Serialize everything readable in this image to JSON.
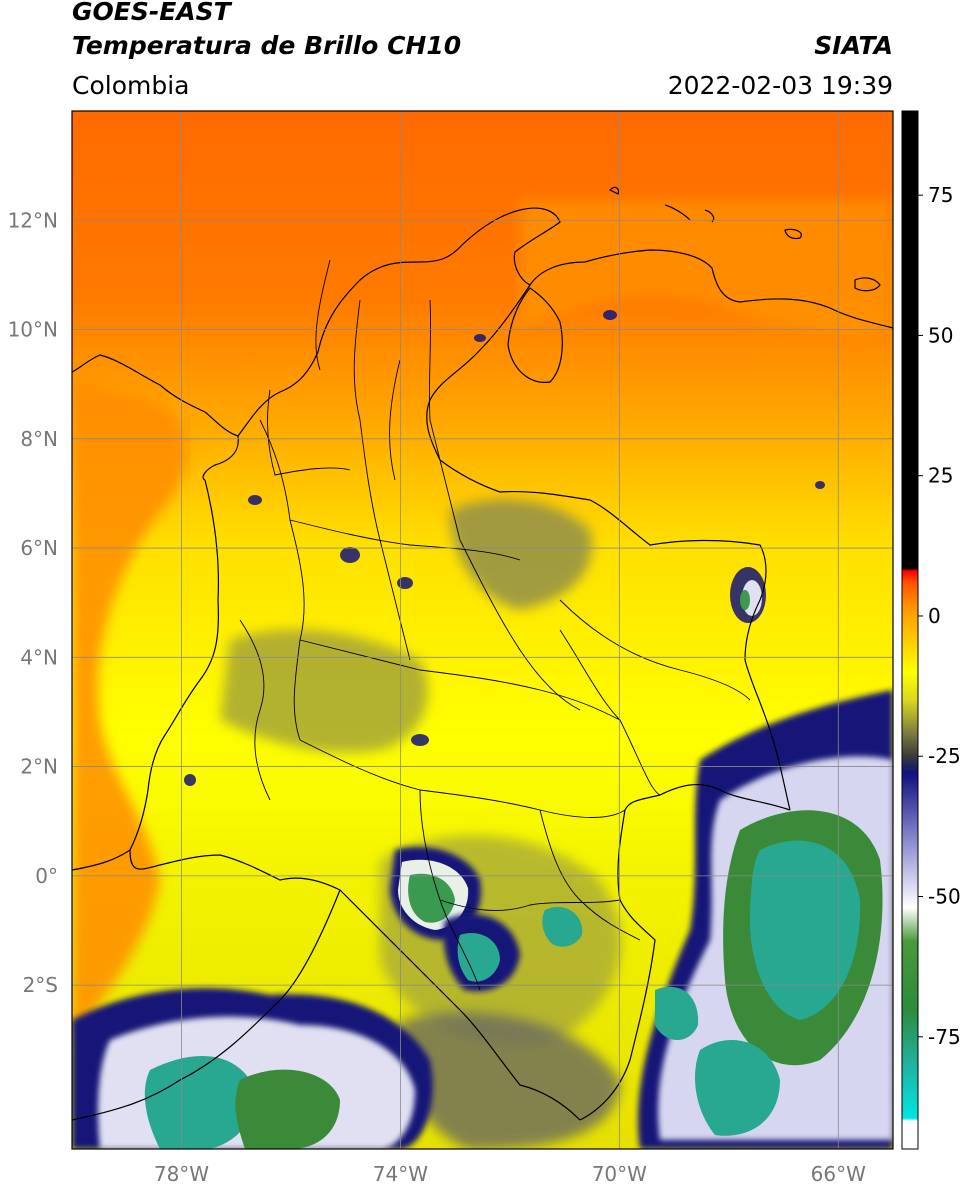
{
  "header": {
    "satellite": "GOES-EAST",
    "product": "Temperatura de Brillo CH10",
    "region": "Colombia",
    "agency": "SIATA",
    "datetime": "2022-02-03 19:39"
  },
  "map": {
    "lon_range": [
      -80,
      -65
    ],
    "lat_range": [
      -5,
      14
    ],
    "lat_ticks": [
      {
        "value": 12,
        "label": "12°N"
      },
      {
        "value": 10,
        "label": "10°N"
      },
      {
        "value": 8,
        "label": "8°N"
      },
      {
        "value": 6,
        "label": "6°N"
      },
      {
        "value": 4,
        "label": "4°N"
      },
      {
        "value": 2,
        "label": "2°N"
      },
      {
        "value": 0,
        "label": "0°"
      },
      {
        "value": -2,
        "label": "2°S"
      }
    ],
    "lon_ticks": [
      {
        "value": -78,
        "label": "78°W"
      },
      {
        "value": -74,
        "label": "74°W"
      },
      {
        "value": -70,
        "label": "70°W"
      },
      {
        "value": -66,
        "label": "66°W"
      }
    ],
    "grid": true
  },
  "colorbar": {
    "range": [
      -95,
      90
    ],
    "ticks": [
      {
        "value": 75,
        "label": "75"
      },
      {
        "value": 50,
        "label": "50"
      },
      {
        "value": 25,
        "label": "25"
      },
      {
        "value": 0,
        "label": "0"
      },
      {
        "value": -25,
        "label": "-25"
      },
      {
        "value": -50,
        "label": "-50"
      },
      {
        "value": -75,
        "label": "-75"
      }
    ],
    "stops": [
      {
        "value": -95,
        "color": "#ffffff"
      },
      {
        "value": -90,
        "color": "#ffffff"
      },
      {
        "value": -89.5,
        "color": "#00e5e5"
      },
      {
        "value": -80,
        "color": "#1fb3a0"
      },
      {
        "value": -70,
        "color": "#2e8b3a"
      },
      {
        "value": -58,
        "color": "#4a9a3a"
      },
      {
        "value": -52,
        "color": "#ffffff"
      },
      {
        "value": -40,
        "color": "#8a8ad0"
      },
      {
        "value": -28,
        "color": "#101080"
      },
      {
        "value": -25,
        "color": "#3a3a3a"
      },
      {
        "value": -21,
        "color": "#7a7a40"
      },
      {
        "value": -15,
        "color": "#d8d820"
      },
      {
        "value": -10,
        "color": "#ffff00"
      },
      {
        "value": -3,
        "color": "#ffc000"
      },
      {
        "value": 2,
        "color": "#ff9000"
      },
      {
        "value": 6,
        "color": "#ff5000"
      },
      {
        "value": 8,
        "color": "#ff0000"
      },
      {
        "value": 8.5,
        "color": "#000000"
      },
      {
        "value": 90,
        "color": "#000000"
      }
    ]
  }
}
